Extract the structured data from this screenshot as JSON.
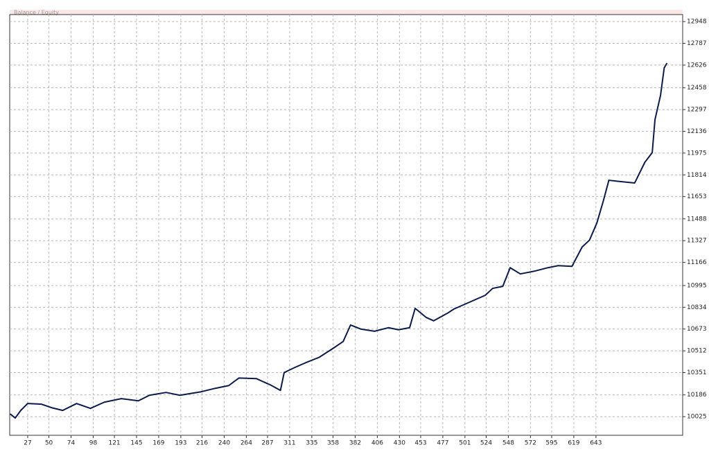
{
  "chart_data": {
    "type": "line",
    "title": "Balance / Equity",
    "x": [
      8,
      13.5,
      19.5,
      27,
      42,
      53,
      65,
      80,
      95,
      110,
      128.5,
      147,
      159,
      177,
      192,
      215,
      230,
      245,
      256,
      275,
      290,
      301,
      305,
      316,
      328,
      343,
      358,
      369,
      377,
      388,
      403,
      418,
      429,
      441,
      447,
      459,
      467,
      482,
      489,
      523,
      531,
      542,
      550,
      561,
      576,
      591,
      602,
      617,
      628,
      636,
      644,
      651,
      657,
      670,
      685,
      696,
      704,
      707,
      713,
      717,
      720
    ],
    "series": [
      {
        "color": "#0b1a4a",
        "values": [
          10045,
          10015,
          10071,
          10122,
          10117,
          10091,
          10071,
          10122,
          10086,
          10132,
          10158,
          10142,
          10183,
          10204,
          10183,
          10209,
          10234,
          10255,
          10311,
          10306,
          10260,
          10219,
          10351,
          10387,
          10423,
          10464,
          10530,
          10581,
          10703,
          10673,
          10657,
          10683,
          10668,
          10683,
          10826,
          10759,
          10734,
          10790,
          10821,
          10923,
          10974,
          10989,
          11127,
          11081,
          11101,
          11127,
          11142,
          11137,
          11280,
          11331,
          11458,
          11621,
          11774,
          11764,
          11754,
          11907,
          11978,
          12223,
          12402,
          12606,
          12641
        ]
      }
    ],
    "xlim": [
      7.5,
      737
    ],
    "xticks": [
      27,
      50,
      74,
      98,
      121,
      145,
      169,
      193,
      216,
      240,
      264,
      287,
      311,
      335,
      358,
      382,
      406,
      430,
      453,
      477,
      501,
      524,
      548,
      572,
      595,
      619,
      643
    ],
    "ylim": [
      9887,
      13000
    ],
    "yticks": [
      10025,
      10186,
      10351,
      10512,
      10673,
      10834,
      10995,
      11166,
      11327,
      11488,
      11653,
      11814,
      11975,
      12136,
      12297,
      12458,
      12626,
      12787,
      12948
    ],
    "grid": true
  }
}
